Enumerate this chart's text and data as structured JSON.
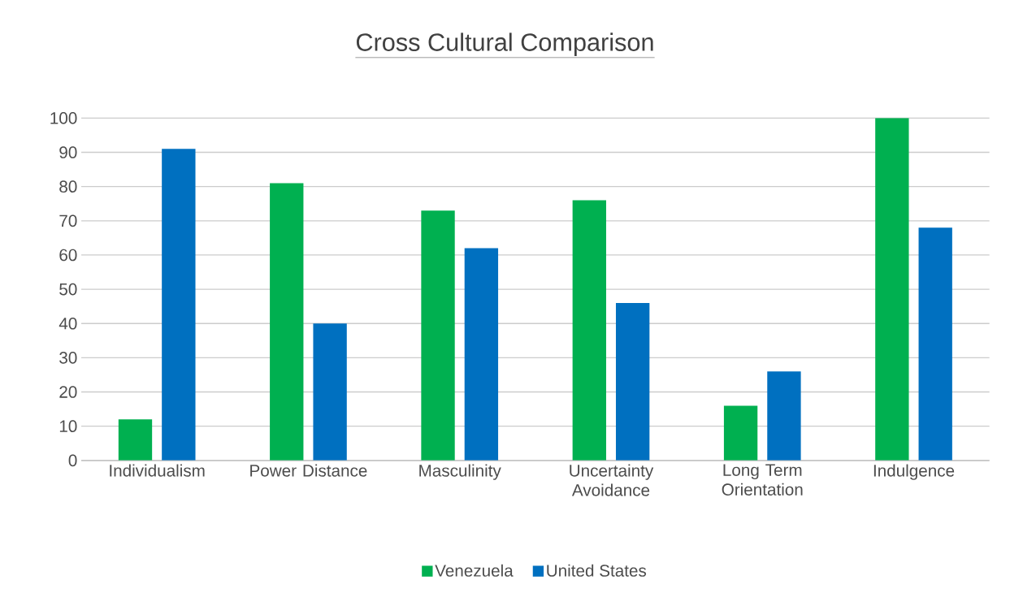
{
  "chart_data": {
    "type": "bar",
    "title": "Cross Cultural Comparison",
    "categories": [
      "Individualism",
      "Power Distance",
      "Masculinity",
      "Uncertainty Avoidance",
      "Long Term Orientation",
      "Indulgence"
    ],
    "series": [
      {
        "name": "Venezuela",
        "color": "#00b050",
        "values": [
          12,
          81,
          73,
          76,
          16,
          100
        ]
      },
      {
        "name": "United States",
        "color": "#0070c0",
        "values": [
          91,
          40,
          62,
          46,
          26,
          68
        ]
      }
    ],
    "ylim": [
      0,
      100
    ],
    "yticks": [
      0,
      10,
      20,
      30,
      40,
      50,
      60,
      70,
      80,
      90,
      100
    ],
    "grid": "y",
    "legend": "bottom"
  }
}
